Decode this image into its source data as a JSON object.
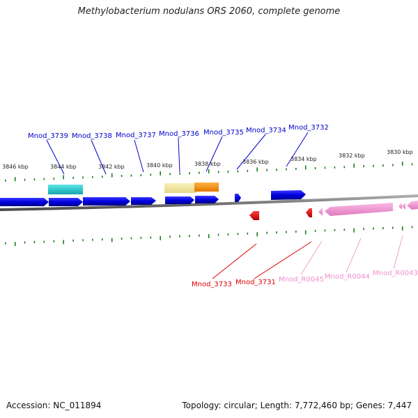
{
  "title": "Methylobacterium nodulans ORS 2060, complete genome",
  "footer": {
    "accession": "Accession: NC_011894",
    "summary": "Topology: circular; Length: 7,772,460 bp; Genes: 7,447"
  },
  "colors": {
    "forward_gene": "#0000dd",
    "reverse_gene": "#dd0000",
    "rna": "#f29ad2",
    "tick": "#1a7f1a",
    "track": "#777777",
    "feature_cyan": "#22c4c8",
    "feature_pale": "#f0e5a0",
    "feature_orange": "#ff9500"
  },
  "scale_labels": [
    "3846 kbp",
    "3844 kbp",
    "3842 kbp",
    "3840 kbp",
    "3838 kbp",
    "3836 kbp",
    "3834 kbp",
    "3832 kbp",
    "3830 kbp"
  ],
  "gene_labels_top": [
    "Mnod_3739",
    "Mnod_3738",
    "Mnod_3737",
    "Mnod_3736",
    "Mnod_3735",
    "Mnod_3734",
    "Mnod_3732"
  ],
  "gene_labels_bottom": [
    {
      "text": "Mnod_3733",
      "kind": "reverse_gene"
    },
    {
      "text": "Mnod_3731",
      "kind": "reverse_gene"
    },
    {
      "text": "Mnod_R0045",
      "kind": "rna"
    },
    {
      "text": "Mnod_R0044",
      "kind": "rna"
    },
    {
      "text": "Mnod_R0043",
      "kind": "rna"
    }
  ]
}
